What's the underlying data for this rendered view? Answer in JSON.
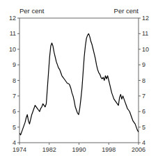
{
  "chart_data": {
    "type": "line",
    "ylabel": "Per cent",
    "y2label": "Per cent",
    "color": "#000000",
    "grid": false,
    "xlim": [
      1974,
      2006
    ],
    "xticks": [
      1974,
      1982,
      1990,
      1998,
      2006
    ],
    "ylim": [
      4,
      12
    ],
    "yticks": [
      4,
      5,
      6,
      7,
      8,
      9,
      10,
      11,
      12
    ],
    "y2lim": [
      4,
      12
    ],
    "y2ticks": [
      4,
      5,
      6,
      7,
      8,
      9,
      10,
      11,
      12
    ],
    "x": [
      1974.0,
      1974.3,
      1974.6,
      1974.9,
      1975.2,
      1975.5,
      1975.8,
      1976.1,
      1976.4,
      1976.7,
      1977.0,
      1977.3,
      1977.6,
      1977.9,
      1978.2,
      1978.5,
      1978.8,
      1979.1,
      1979.4,
      1979.7,
      1980.0,
      1980.3,
      1980.6,
      1980.9,
      1981.2,
      1981.5,
      1981.8,
      1982.1,
      1982.4,
      1982.7,
      1983.0,
      1983.3,
      1983.6,
      1983.9,
      1984.2,
      1984.5,
      1984.8,
      1985.1,
      1985.4,
      1985.7,
      1986.0,
      1986.3,
      1986.6,
      1986.9,
      1987.2,
      1987.5,
      1987.8,
      1988.1,
      1988.4,
      1988.7,
      1989.0,
      1989.3,
      1989.6,
      1989.9,
      1990.2,
      1990.5,
      1990.8,
      1991.1,
      1991.4,
      1991.7,
      1992.0,
      1992.3,
      1992.6,
      1992.9,
      1993.2,
      1993.5,
      1993.8,
      1994.1,
      1994.4,
      1994.7,
      1995.0,
      1995.3,
      1995.6,
      1995.9,
      1996.2,
      1996.5,
      1996.8,
      1997.1,
      1997.4,
      1997.7,
      1997.9,
      1998.2,
      1998.5,
      1998.8,
      1999.1,
      1999.4,
      1999.7,
      2000.0,
      2000.3,
      2000.6,
      2000.9,
      2001.2,
      2001.5,
      2001.8,
      2002.1,
      2002.4,
      2002.7,
      2003.0,
      2003.3,
      2003.6,
      2003.9,
      2004.2,
      2004.5,
      2004.8,
      2005.1,
      2005.4,
      2005.7,
      2006.0
    ],
    "values": [
      4.6,
      4.5,
      4.7,
      4.9,
      5.1,
      5.3,
      5.6,
      5.8,
      5.4,
      5.2,
      5.5,
      5.8,
      6.0,
      6.2,
      6.4,
      6.3,
      6.2,
      6.1,
      6.0,
      6.2,
      6.3,
      6.5,
      6.4,
      6.3,
      6.5,
      7.5,
      8.5,
      9.5,
      10.2,
      10.4,
      10.2,
      9.8,
      9.5,
      9.2,
      9.0,
      8.8,
      8.7,
      8.5,
      8.3,
      8.2,
      8.1,
      8.0,
      7.9,
      7.8,
      7.8,
      7.7,
      7.5,
      7.2,
      7.0,
      6.7,
      6.3,
      6.1,
      5.9,
      5.8,
      6.2,
      6.8,
      7.5,
      8.5,
      9.5,
      10.2,
      10.7,
      10.9,
      11.0,
      10.8,
      10.5,
      10.3,
      10.0,
      9.7,
      9.4,
      9.0,
      8.7,
      8.5,
      8.4,
      8.2,
      8.1,
      8.2,
      8.0,
      8.3,
      8.1,
      8.3,
      8.1,
      7.8,
      7.5,
      7.2,
      7.0,
      6.8,
      6.7,
      6.6,
      6.5,
      6.4,
      6.9,
      7.1,
      6.8,
      7.0,
      6.8,
      6.6,
      6.4,
      6.2,
      6.1,
      6.0,
      5.8,
      5.6,
      5.4,
      5.3,
      5.2,
      5.0,
      4.8,
      4.7
    ]
  }
}
